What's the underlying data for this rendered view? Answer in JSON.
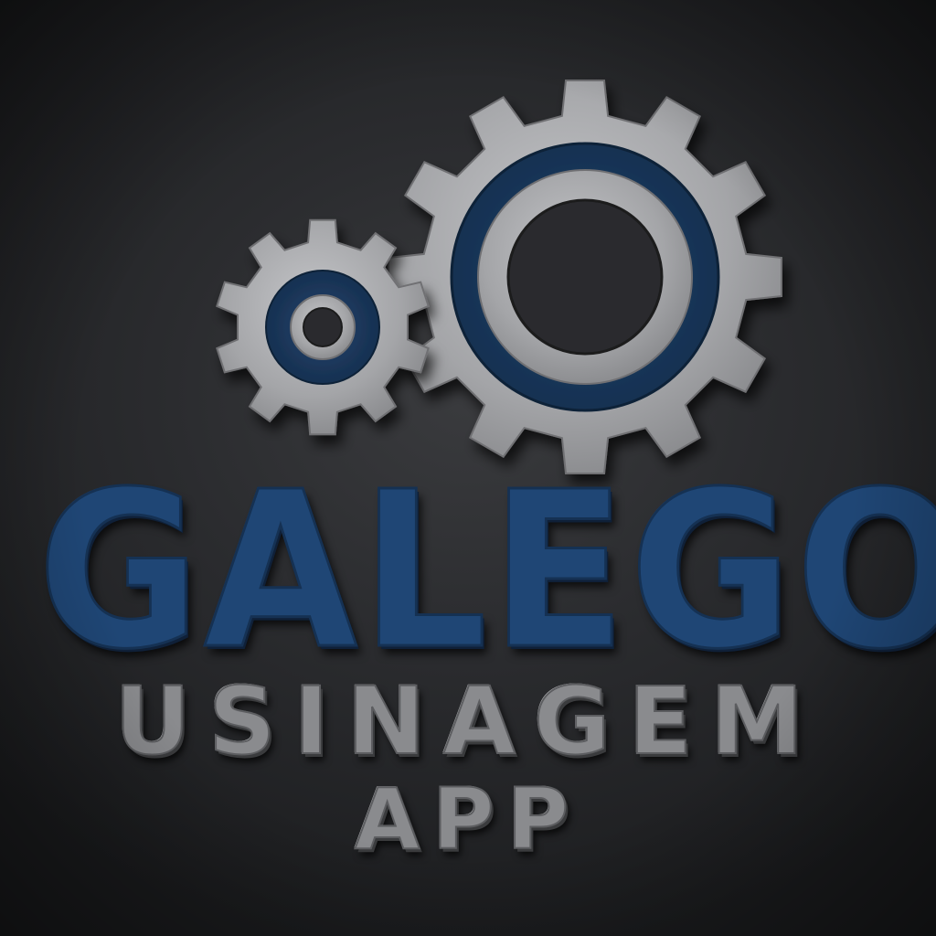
{
  "logo": {
    "brand_name": "GALEGO",
    "subtitle": "USINAGEM",
    "tagline": "APP"
  },
  "icons": {
    "large_gear": "large-gear-icon",
    "small_gear": "small-gear-icon"
  },
  "colors": {
    "background": "#2b2c2f",
    "brand_blue": "#1f4675",
    "gear_silver": "#a9aaad",
    "gear_blue_ring": "#1d3a60",
    "text_silver": "#8a8b8e"
  }
}
